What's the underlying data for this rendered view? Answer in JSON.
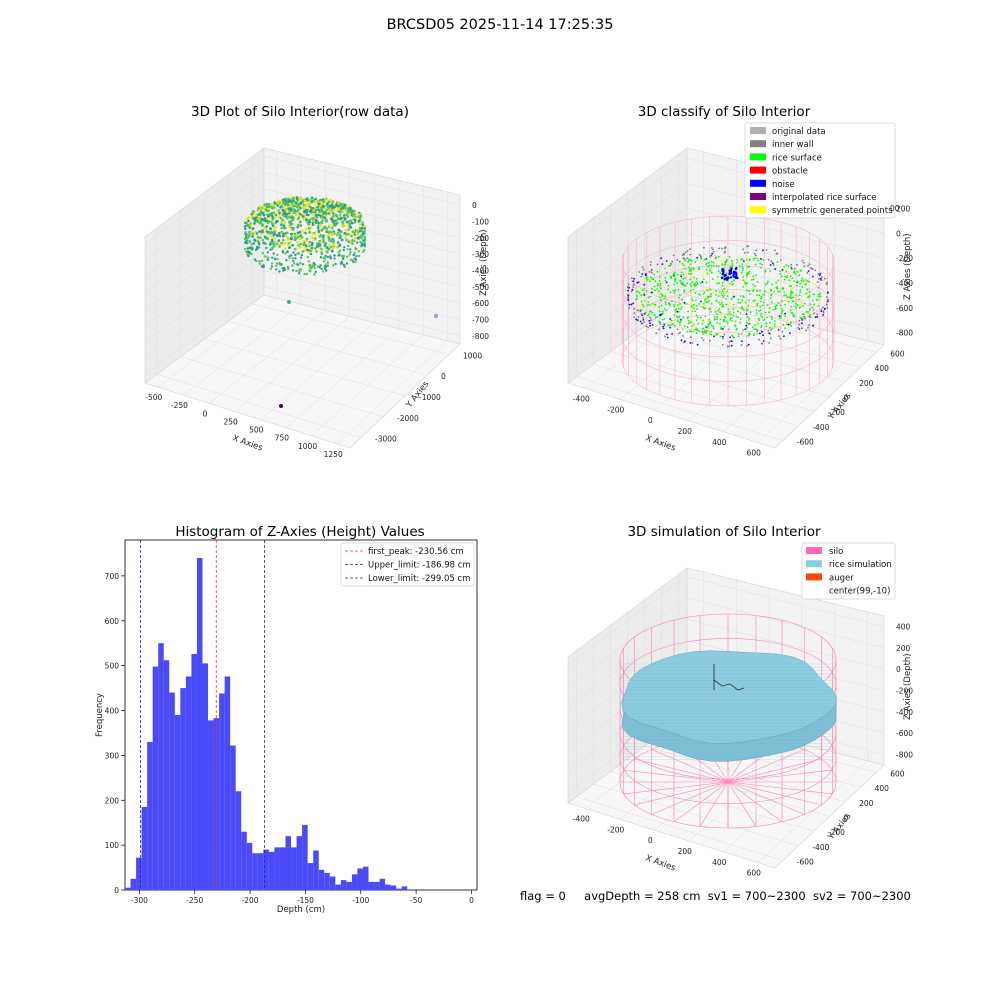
{
  "figure_title": "BRCSD05 2025-11-14 17:25:35",
  "status": {
    "flag": "flag = 0",
    "avg_depth": "avgDepth = 258 cm",
    "sv1": "sv1 = 700~2300",
    "sv2": "sv2 = 700~2300"
  },
  "chart_data": [
    {
      "type": "scatter",
      "title": "3D Plot of Silo Interior(row data)",
      "xlabel": "X Axies",
      "ylabel": "Y Axies",
      "zlabel": "Z Axies (Depth)",
      "x_ticks": [
        "-500",
        "-250",
        "0",
        "250",
        "500",
        "750",
        "1000",
        "1250"
      ],
      "y_ticks": [
        "1000",
        "0",
        "-1000",
        "-2000",
        "-3000"
      ],
      "z_ticks": [
        "0",
        "-100",
        "-200",
        "-300",
        "-400",
        "-500",
        "-600",
        "-700",
        "-800"
      ],
      "colors": {
        "low": "#2a9d8f",
        "mid": "#57c75a",
        "high": "#e6e21c",
        "outlier": "#440154"
      }
    },
    {
      "type": "scatter",
      "title": "3D classify of Silo Interior",
      "xlabel": "X Axies",
      "ylabel": "Y Axies",
      "zlabel": "Z Axies (Depth)",
      "x_ticks": [
        "-400",
        "-200",
        "0",
        "200",
        "400",
        "600"
      ],
      "y_ticks": [
        "600",
        "400",
        "200",
        "0",
        "-200",
        "-400",
        "-600"
      ],
      "z_ticks": [
        "200",
        "0",
        "-200",
        "-400",
        "-600",
        "-800"
      ],
      "z_tick_top": "00",
      "legend": [
        {
          "label": "original data",
          "color": "#b0b0b0"
        },
        {
          "label": "inner wall",
          "color": "#808080"
        },
        {
          "label": "rice surface",
          "color": "#00ff00"
        },
        {
          "label": "obstacle",
          "color": "#ff0000"
        },
        {
          "label": "noise",
          "color": "#0000ff"
        },
        {
          "label": "interpolated rice surface",
          "color": "#800080"
        },
        {
          "label": "symmetric generated points",
          "color": "#ffff00"
        }
      ]
    },
    {
      "type": "bar",
      "title": "Histogram of Z-Axies (Height) Values",
      "xlabel": "Depth (cm)",
      "ylabel": "Frequency",
      "xlim": [
        -313,
        5
      ],
      "ylim": [
        0,
        780
      ],
      "x_ticks": [
        -300,
        -250,
        -200,
        -150,
        -100,
        -50,
        0
      ],
      "y_ticks": [
        0,
        100,
        200,
        300,
        400,
        500,
        600,
        700
      ],
      "bin_start": -313,
      "bin_width": 5,
      "values": [
        5,
        25,
        72,
        185,
        330,
        498,
        550,
        512,
        440,
        390,
        450,
        476,
        526,
        740,
        505,
        378,
        383,
        438,
        476,
        322,
        220,
        130,
        105,
        82,
        82,
        90,
        85,
        95,
        95,
        120,
        95,
        120,
        145,
        60,
        88,
        45,
        38,
        30,
        12,
        22,
        18,
        35,
        48,
        52,
        18,
        18,
        25,
        12,
        10,
        3,
        8
      ],
      "bar_color": "#4a4af8",
      "lines": [
        {
          "label": "first_peak: -230.56 cm",
          "x": -230.56,
          "color": "#ff2a2a"
        },
        {
          "label": "Upper_limit: -186.98 cm",
          "x": -186.98,
          "color": "#1c1cd8"
        },
        {
          "label": "Lower_limit: -299.05 cm",
          "x": -299.05,
          "color": "#1c1cd8"
        }
      ]
    },
    {
      "type": "scatter",
      "title": "3D simulation of Silo Interior",
      "xlabel": "X Axies",
      "ylabel": "Y Axies",
      "zlabel": "Z Axies (Depth)",
      "x_ticks": [
        "-400",
        "-200",
        "0",
        "200",
        "400",
        "600"
      ],
      "y_ticks": [
        "600",
        "400",
        "200",
        "0",
        "-200",
        "-400",
        "-600"
      ],
      "z_ticks": [
        "400",
        "200",
        "0",
        "-200",
        "-400",
        "-600",
        "-800"
      ],
      "legend": [
        {
          "label": "silo",
          "color": "#ff69b4"
        },
        {
          "label": "rice simulation",
          "color": "#87ceeb"
        },
        {
          "label": "auger",
          "color": "#ff4500"
        },
        {
          "label": "center(99,-10)",
          "color": "#ffffff"
        }
      ]
    }
  ]
}
